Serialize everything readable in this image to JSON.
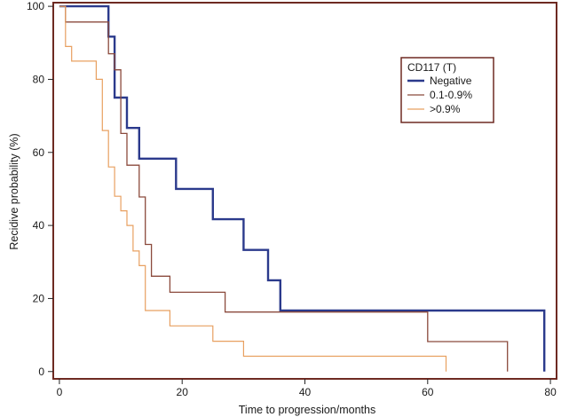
{
  "chart_data": {
    "type": "line",
    "subtype": "kaplan-meier-step",
    "xlabel": "Time to progression/months",
    "ylabel": "Recidive probability (%)",
    "xlim": [
      -1,
      81
    ],
    "ylim": [
      -2,
      101
    ],
    "x_ticks": [
      0,
      20,
      40,
      60,
      80
    ],
    "y_ticks": [
      0,
      20,
      40,
      60,
      80,
      100
    ],
    "grid": false,
    "legend": {
      "title": "CD117 (T)",
      "placement": "top-right"
    },
    "series": [
      {
        "name": "Negative",
        "color": "#2b3a8c",
        "points": [
          [
            0,
            100
          ],
          [
            8,
            100
          ],
          [
            8,
            91.7
          ],
          [
            9,
            91.7
          ],
          [
            9,
            75
          ],
          [
            11,
            75
          ],
          [
            11,
            66.7
          ],
          [
            13,
            66.7
          ],
          [
            13,
            58.3
          ],
          [
            19,
            58.3
          ],
          [
            19,
            50
          ],
          [
            25,
            50
          ],
          [
            25,
            41.7
          ],
          [
            30,
            41.7
          ],
          [
            30,
            33.3
          ],
          [
            34,
            33.3
          ],
          [
            34,
            25
          ],
          [
            36,
            25
          ],
          [
            36,
            16.7
          ],
          [
            79,
            16.7
          ],
          [
            79,
            0
          ]
        ]
      },
      {
        "name": "0.1-0.9%",
        "color": "#8b4a3c",
        "points": [
          [
            0,
            100
          ],
          [
            1,
            100
          ],
          [
            1,
            95.7
          ],
          [
            8,
            95.7
          ],
          [
            8,
            87
          ],
          [
            9,
            87
          ],
          [
            9,
            82.6
          ],
          [
            10,
            82.6
          ],
          [
            10,
            65.2
          ],
          [
            11,
            65.2
          ],
          [
            11,
            56.5
          ],
          [
            13,
            56.5
          ],
          [
            13,
            47.8
          ],
          [
            14,
            47.8
          ],
          [
            14,
            34.8
          ],
          [
            15,
            34.8
          ],
          [
            15,
            26.1
          ],
          [
            18,
            26.1
          ],
          [
            18,
            21.7
          ],
          [
            27,
            21.7
          ],
          [
            27,
            16.3
          ],
          [
            60,
            16.3
          ],
          [
            60,
            8.2
          ],
          [
            73,
            8.2
          ],
          [
            73,
            0
          ]
        ]
      },
      {
        "name": ">0.9%",
        "color": "#e8a060",
        "points": [
          [
            0,
            100
          ],
          [
            1,
            100
          ],
          [
            1,
            89
          ],
          [
            2,
            89
          ],
          [
            2,
            85
          ],
          [
            6,
            85
          ],
          [
            6,
            80
          ],
          [
            7,
            80
          ],
          [
            7,
            66
          ],
          [
            8,
            66
          ],
          [
            8,
            56
          ],
          [
            9,
            56
          ],
          [
            9,
            48
          ],
          [
            10,
            48
          ],
          [
            10,
            44
          ],
          [
            11,
            44
          ],
          [
            11,
            40
          ],
          [
            12,
            40
          ],
          [
            12,
            33
          ],
          [
            13,
            33
          ],
          [
            13,
            29
          ],
          [
            14,
            29
          ],
          [
            14,
            16.7
          ],
          [
            18,
            16.7
          ],
          [
            18,
            12.5
          ],
          [
            25,
            12.5
          ],
          [
            25,
            8.3
          ],
          [
            30,
            8.3
          ],
          [
            30,
            4.2
          ],
          [
            63,
            4.2
          ],
          [
            63,
            0
          ]
        ]
      }
    ]
  }
}
